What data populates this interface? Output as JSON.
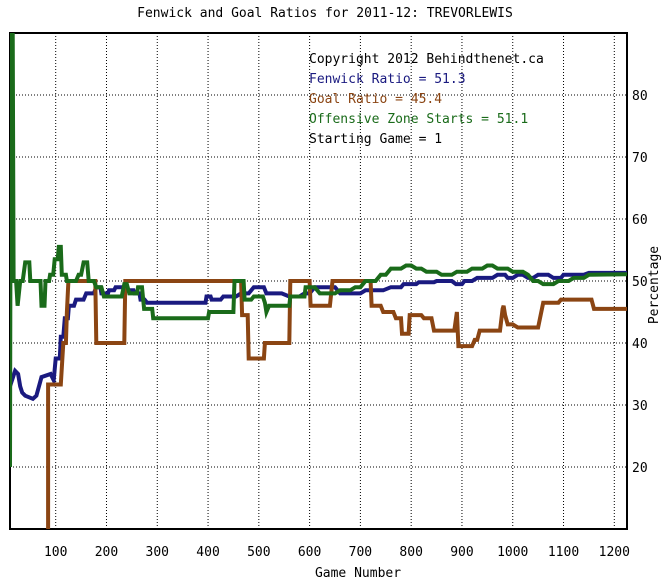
{
  "chart_data": {
    "type": "line",
    "title": "Fenwick and Goal Ratios for 2011-12: TREVORLEWIS",
    "xlabel": "Game Number",
    "ylabel": "Percentage",
    "xlim": [
      10,
      1225
    ],
    "ylim": [
      10,
      90
    ],
    "xticks": [
      100,
      200,
      300,
      400,
      500,
      600,
      700,
      800,
      900,
      1000,
      1100,
      1200
    ],
    "yticks": [
      20,
      30,
      40,
      50,
      60,
      70,
      80
    ],
    "grid": true,
    "annotations": [
      "Copyright 2012 Behindthenet.ca",
      "Fenwick Ratio = 51.3",
      "Goal Ratio = 45.4",
      "Offensive Zone Starts = 51.1",
      "Starting Game = 1"
    ],
    "annotation_colors": [
      "#000000",
      "#1a1a80",
      "#8b4513",
      "#1a6b1a",
      "#000000"
    ],
    "series": [
      {
        "name": "Fenwick Ratio",
        "color": "#1a1a80",
        "points": [
          [
            10,
            33
          ],
          [
            14,
            34
          ],
          [
            20,
            35.5
          ],
          [
            26,
            35
          ],
          [
            30,
            33
          ],
          [
            34,
            32
          ],
          [
            40,
            31.5
          ],
          [
            55,
            31
          ],
          [
            62,
            31.5
          ],
          [
            72,
            34.5
          ],
          [
            90,
            35
          ],
          [
            96,
            34
          ],
          [
            100,
            37.5
          ],
          [
            108,
            37.5
          ],
          [
            110,
            41
          ],
          [
            115,
            41
          ],
          [
            118,
            44
          ],
          [
            124,
            44
          ],
          [
            126,
            46
          ],
          [
            136,
            46
          ],
          [
            140,
            47
          ],
          [
            155,
            47
          ],
          [
            160,
            48
          ],
          [
            175,
            48
          ],
          [
            180,
            49
          ],
          [
            188,
            49
          ],
          [
            190,
            48
          ],
          [
            203,
            48
          ],
          [
            205,
            48.5
          ],
          [
            215,
            48.5
          ],
          [
            218,
            49
          ],
          [
            240,
            49
          ],
          [
            243,
            48.5
          ],
          [
            253,
            48.5
          ],
          [
            255,
            48
          ],
          [
            265,
            48
          ],
          [
            267,
            47
          ],
          [
            275,
            47
          ],
          [
            280,
            46.5
          ],
          [
            340,
            46.5
          ],
          [
            342,
            46.5
          ],
          [
            395,
            46.5
          ],
          [
            397,
            47.5
          ],
          [
            405,
            47.5
          ],
          [
            407,
            47
          ],
          [
            425,
            47
          ],
          [
            430,
            47.5
          ],
          [
            455,
            47.5
          ],
          [
            465,
            48
          ],
          [
            480,
            48
          ],
          [
            490,
            49
          ],
          [
            510,
            49
          ],
          [
            515,
            48
          ],
          [
            545,
            48
          ],
          [
            560,
            47.5
          ],
          [
            580,
            47.5
          ],
          [
            590,
            48
          ],
          [
            600,
            48
          ],
          [
            610,
            49
          ],
          [
            650,
            49
          ],
          [
            660,
            48
          ],
          [
            700,
            48
          ],
          [
            710,
            48.5
          ],
          [
            745,
            48.5
          ],
          [
            760,
            49
          ],
          [
            780,
            49
          ],
          [
            785,
            49.5
          ],
          [
            800,
            49.5
          ],
          [
            810,
            49.5
          ],
          [
            815,
            49.8
          ],
          [
            845,
            49.8
          ],
          [
            850,
            50
          ],
          [
            880,
            50
          ],
          [
            888,
            49.5
          ],
          [
            900,
            49.5
          ],
          [
            905,
            50
          ],
          [
            920,
            50
          ],
          [
            930,
            50.5
          ],
          [
            960,
            50.5
          ],
          [
            970,
            51
          ],
          [
            985,
            51
          ],
          [
            990,
            50.5
          ],
          [
            1000,
            50.5
          ],
          [
            1010,
            51
          ],
          [
            1020,
            51
          ],
          [
            1030,
            50.5
          ],
          [
            1040,
            50.5
          ],
          [
            1050,
            51
          ],
          [
            1070,
            51
          ],
          [
            1080,
            50.5
          ],
          [
            1095,
            50.5
          ],
          [
            1100,
            51
          ],
          [
            1140,
            51
          ],
          [
            1150,
            51.3
          ],
          [
            1225,
            51.3
          ]
        ]
      },
      {
        "name": "Goal Ratio",
        "color": "#8b4513",
        "points": [
          [
            85,
            10
          ],
          [
            85,
            33.3
          ],
          [
            105,
            33.3
          ],
          [
            110,
            33.3
          ],
          [
            115,
            40
          ],
          [
            120,
            40
          ],
          [
            122,
            45
          ],
          [
            125,
            50
          ],
          [
            140,
            50
          ],
          [
            145,
            50
          ],
          [
            178,
            50
          ],
          [
            180,
            40
          ],
          [
            190,
            40
          ],
          [
            205,
            40
          ],
          [
            215,
            40
          ],
          [
            235,
            40
          ],
          [
            237,
            50
          ],
          [
            465,
            50
          ],
          [
            467,
            44.5
          ],
          [
            478,
            44.5
          ],
          [
            480,
            37.5
          ],
          [
            510,
            37.5
          ],
          [
            512,
            40
          ],
          [
            560,
            40
          ],
          [
            562,
            50
          ],
          [
            600,
            50
          ],
          [
            602,
            46
          ],
          [
            640,
            46
          ],
          [
            645,
            50
          ],
          [
            690,
            50
          ],
          [
            700,
            50
          ],
          [
            720,
            50
          ],
          [
            722,
            46
          ],
          [
            740,
            46
          ],
          [
            745,
            45
          ],
          [
            765,
            45
          ],
          [
            770,
            44
          ],
          [
            780,
            44
          ],
          [
            782,
            41.5
          ],
          [
            795,
            41.5
          ],
          [
            797,
            44.5
          ],
          [
            820,
            44.5
          ],
          [
            825,
            44
          ],
          [
            840,
            44
          ],
          [
            845,
            42
          ],
          [
            885,
            42
          ],
          [
            890,
            45
          ],
          [
            893,
            39.5
          ],
          [
            920,
            39.5
          ],
          [
            925,
            40.5
          ],
          [
            930,
            40.5
          ],
          [
            935,
            42
          ],
          [
            975,
            42
          ],
          [
            980,
            45.5
          ],
          [
            982,
            46
          ],
          [
            985,
            44.5
          ],
          [
            990,
            43
          ],
          [
            1000,
            43
          ],
          [
            1010,
            42.5
          ],
          [
            1050,
            42.5
          ],
          [
            1060,
            46.5
          ],
          [
            1090,
            46.5
          ],
          [
            1095,
            47
          ],
          [
            1155,
            47
          ],
          [
            1160,
            45.5
          ],
          [
            1225,
            45.5
          ]
        ]
      },
      {
        "name": "Offensive Zone Starts",
        "color": "#1a6b1a",
        "points": [
          [
            10,
            20
          ],
          [
            12,
            100
          ],
          [
            15,
            100
          ],
          [
            17,
            50
          ],
          [
            22,
            50
          ],
          [
            25,
            46
          ],
          [
            30,
            50
          ],
          [
            35,
            50
          ],
          [
            40,
            53
          ],
          [
            48,
            53
          ],
          [
            50,
            50
          ],
          [
            70,
            50
          ],
          [
            72,
            46
          ],
          [
            78,
            46
          ],
          [
            80,
            50
          ],
          [
            87,
            50
          ],
          [
            89,
            51
          ],
          [
            95,
            51
          ],
          [
            98,
            53.5
          ],
          [
            104,
            53.5
          ],
          [
            106,
            55.5
          ],
          [
            110,
            55.5
          ],
          [
            112,
            51
          ],
          [
            120,
            51
          ],
          [
            122,
            50
          ],
          [
            140,
            50
          ],
          [
            145,
            51
          ],
          [
            150,
            51
          ],
          [
            155,
            53
          ],
          [
            162,
            53
          ],
          [
            165,
            50
          ],
          [
            175,
            50
          ],
          [
            180,
            49
          ],
          [
            190,
            49
          ],
          [
            195,
            47.5
          ],
          [
            200,
            47.5
          ],
          [
            205,
            47.5
          ],
          [
            230,
            47.5
          ],
          [
            235,
            49.5
          ],
          [
            240,
            49.5
          ],
          [
            245,
            48
          ],
          [
            260,
            48
          ],
          [
            262,
            49
          ],
          [
            270,
            49
          ],
          [
            274,
            45.5
          ],
          [
            290,
            45.5
          ],
          [
            292,
            44
          ],
          [
            400,
            44
          ],
          [
            402,
            45
          ],
          [
            450,
            45
          ],
          [
            452,
            50
          ],
          [
            470,
            50
          ],
          [
            472,
            47
          ],
          [
            485,
            47
          ],
          [
            490,
            47.5
          ],
          [
            508,
            47.5
          ],
          [
            512,
            46.5
          ],
          [
            515,
            45
          ],
          [
            520,
            46
          ],
          [
            530,
            46
          ],
          [
            535,
            46
          ],
          [
            560,
            46
          ],
          [
            562,
            47.5
          ],
          [
            590,
            47.5
          ],
          [
            592,
            49
          ],
          [
            610,
            49
          ],
          [
            620,
            48
          ],
          [
            650,
            48
          ],
          [
            660,
            48.5
          ],
          [
            680,
            48.5
          ],
          [
            690,
            49
          ],
          [
            700,
            49
          ],
          [
            710,
            50
          ],
          [
            720,
            50
          ],
          [
            730,
            50
          ],
          [
            740,
            51
          ],
          [
            750,
            51
          ],
          [
            760,
            52
          ],
          [
            780,
            52
          ],
          [
            790,
            52.5
          ],
          [
            800,
            52.5
          ],
          [
            810,
            52
          ],
          [
            820,
            52
          ],
          [
            830,
            51.5
          ],
          [
            850,
            51.5
          ],
          [
            860,
            51
          ],
          [
            880,
            51
          ],
          [
            890,
            51.5
          ],
          [
            910,
            51.5
          ],
          [
            920,
            52
          ],
          [
            940,
            52
          ],
          [
            950,
            52.5
          ],
          [
            960,
            52.5
          ],
          [
            970,
            52
          ],
          [
            990,
            52
          ],
          [
            1000,
            51.5
          ],
          [
            1020,
            51.5
          ],
          [
            1030,
            51
          ],
          [
            1040,
            50
          ],
          [
            1050,
            50
          ],
          [
            1060,
            49.5
          ],
          [
            1080,
            49.5
          ],
          [
            1090,
            50
          ],
          [
            1110,
            50
          ],
          [
            1120,
            50.5
          ],
          [
            1140,
            50.5
          ],
          [
            1150,
            51
          ],
          [
            1225,
            51.1
          ]
        ]
      }
    ]
  }
}
